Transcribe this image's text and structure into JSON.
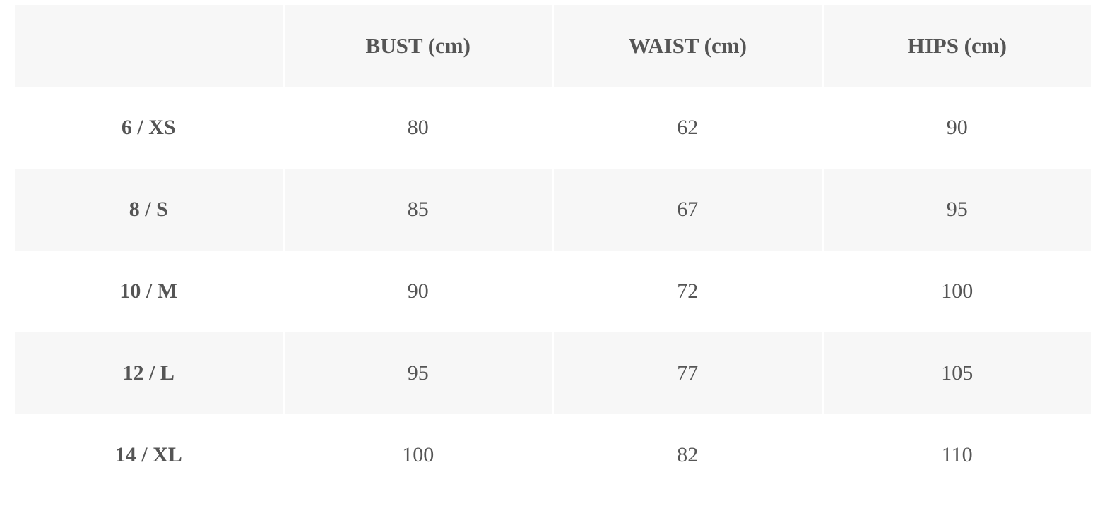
{
  "table": {
    "headers": [
      "",
      "BUST (cm)",
      "WAIST (cm)",
      "HIPS (cm)"
    ],
    "rows": [
      {
        "size": "6 / XS",
        "bust": "80",
        "waist": "62",
        "hips": "90"
      },
      {
        "size": "8 / S",
        "bust": "85",
        "waist": "67",
        "hips": "95"
      },
      {
        "size": "10 / M",
        "bust": "90",
        "waist": "72",
        "hips": "100"
      },
      {
        "size": "12 / L",
        "bust": "95",
        "waist": "77",
        "hips": "105"
      },
      {
        "size": "14 / XL",
        "bust": "100",
        "waist": "82",
        "hips": "110"
      }
    ],
    "colors": {
      "shade": "#f7f7f7",
      "text": "#555555"
    }
  }
}
